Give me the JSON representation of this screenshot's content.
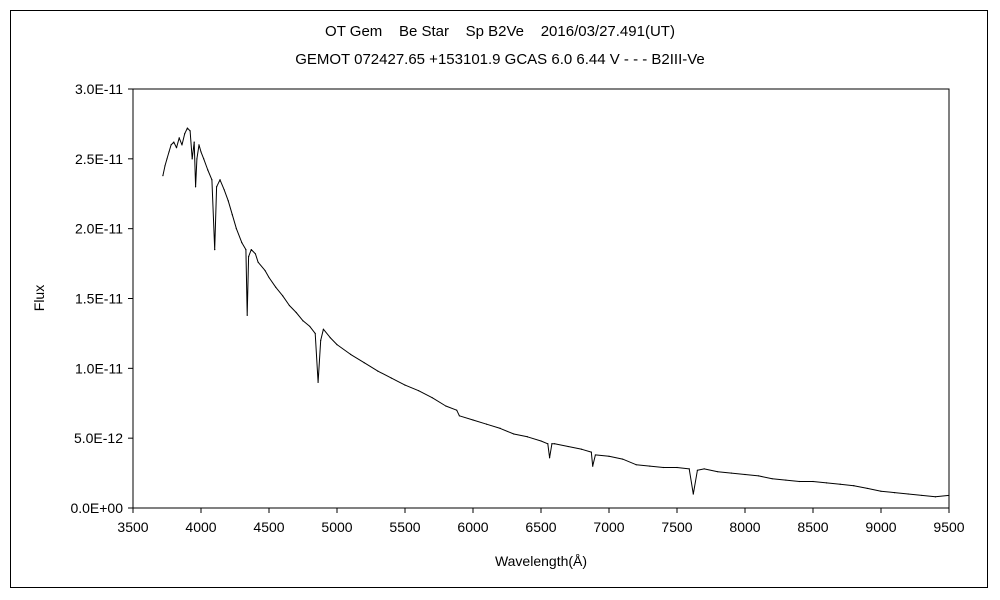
{
  "chart_data": {
    "type": "line",
    "title": "OT Gem    Be Star    Sp B2Ve    2016/03/27.491(UT)",
    "subtitle": "GEMOT 072427.65 +153101.9 GCAS 6.0 6.44 V - - - B2III-Ve",
    "xlabel": "Wavelength(Å)",
    "ylabel": "Flux",
    "xlim": [
      3500,
      9500
    ],
    "ylim": [
      0,
      3e-11
    ],
    "x_ticks": [
      "3500",
      "4000",
      "4500",
      "5000",
      "5500",
      "6000",
      "6500",
      "7000",
      "7500",
      "8000",
      "8500",
      "9000",
      "9500"
    ],
    "y_ticks": [
      "0.0E+00",
      "5.0E-12",
      "1.0E-11",
      "1.5E-11",
      "2.0E-11",
      "2.5E-11",
      "3.0E-11"
    ],
    "grid": false,
    "legend": "none",
    "series": [
      {
        "color": "#000000",
        "x": [
          3720,
          3735,
          3750,
          3765,
          3780,
          3800,
          3820,
          3840,
          3860,
          3880,
          3900,
          3920,
          3935,
          3950,
          3960,
          3970,
          3985,
          4000,
          4020,
          4050,
          4080,
          4101,
          4115,
          4140,
          4170,
          4200,
          4230,
          4260,
          4300,
          4330,
          4340,
          4350,
          4370,
          4400,
          4420,
          4471,
          4500,
          4550,
          4600,
          4650,
          4700,
          4750,
          4800,
          4840,
          4861,
          4880,
          4900,
          4950,
          5000,
          5100,
          5200,
          5300,
          5400,
          5500,
          5600,
          5700,
          5800,
          5880,
          5900,
          6000,
          6100,
          6200,
          6300,
          6400,
          6500,
          6550,
          6563,
          6580,
          6600,
          6700,
          6800,
          6870,
          6880,
          6900,
          7000,
          7100,
          7200,
          7300,
          7400,
          7500,
          7590,
          7620,
          7650,
          7700,
          7800,
          7900,
          8000,
          8100,
          8200,
          8300,
          8400,
          8500,
          8600,
          8700,
          8800,
          8900,
          9000,
          9100,
          9200,
          9300,
          9400,
          9500
        ],
        "values": [
          2.38e-11,
          2.45e-11,
          2.5e-11,
          2.55e-11,
          2.6e-11,
          2.62e-11,
          2.58e-11,
          2.65e-11,
          2.6e-11,
          2.68e-11,
          2.72e-11,
          2.7e-11,
          2.5e-11,
          2.62e-11,
          2.3e-11,
          2.5e-11,
          2.6e-11,
          2.55e-11,
          2.5e-11,
          2.42e-11,
          2.35e-11,
          1.85e-11,
          2.3e-11,
          2.35e-11,
          2.28e-11,
          2.2e-11,
          2.1e-11,
          2e-11,
          1.9e-11,
          1.85e-11,
          1.38e-11,
          1.8e-11,
          1.85e-11,
          1.82e-11,
          1.76e-11,
          1.7e-11,
          1.65e-11,
          1.58e-11,
          1.52e-11,
          1.45e-11,
          1.4e-11,
          1.34e-11,
          1.3e-11,
          1.25e-11,
          9e-12,
          1.2e-11,
          1.28e-11,
          1.22e-11,
          1.17e-11,
          1.1e-11,
          1.04e-11,
          9.8e-12,
          9.3e-12,
          8.8e-12,
          8.4e-12,
          7.9e-12,
          7.3e-12,
          7e-12,
          6.6e-12,
          6.3e-12,
          6e-12,
          5.7e-12,
          5.3e-12,
          5.1e-12,
          4.8e-12,
          4.6e-12,
          3.6e-12,
          4.6e-12,
          4.6e-12,
          4.4e-12,
          4.2e-12,
          4e-12,
          3e-12,
          3.8e-12,
          3.7e-12,
          3.5e-12,
          3.1e-12,
          3e-12,
          2.9e-12,
          2.9e-12,
          2.8e-12,
          1e-12,
          2.7e-12,
          2.8e-12,
          2.6e-12,
          2.5e-12,
          2.4e-12,
          2.3e-12,
          2.1e-12,
          2e-12,
          1.9e-12,
          1.9e-12,
          1.8e-12,
          1.7e-12,
          1.6e-12,
          1.4e-12,
          1.2e-12,
          1.1e-12,
          1e-12,
          9e-13,
          8e-13,
          9e-13
        ]
      }
    ]
  }
}
